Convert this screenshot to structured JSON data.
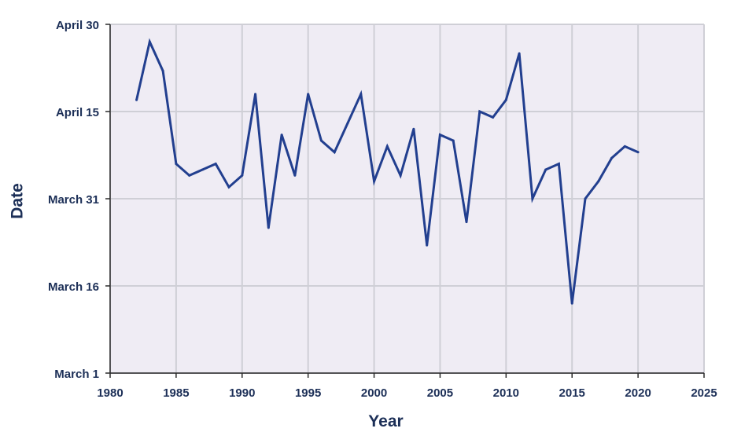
{
  "chart_data": {
    "type": "line",
    "xlabel": "Year",
    "ylabel": "Date",
    "xlim": [
      1980,
      2025
    ],
    "x_ticks": [
      "1980",
      "1985",
      "1990",
      "1995",
      "2000",
      "2005",
      "2010",
      "2015",
      "2020",
      "2025"
    ],
    "y_ticks": [
      "March 1",
      "March 16",
      "March 31",
      "April 15",
      "April 30"
    ],
    "ylim": [
      "March 1",
      "April 30"
    ],
    "grid": true,
    "colors": {
      "plot_background": "#efecf4",
      "grid": "#cfcfd6",
      "line": "#223f8f",
      "axis": "#2a2a2a",
      "text": "#1c2f57"
    },
    "series": [
      {
        "x": [
          1982,
          1983,
          1984,
          1985,
          1986,
          1987,
          1988,
          1989,
          1990,
          1991,
          1992,
          1993,
          1994,
          1995,
          1996,
          1997,
          1998,
          1999,
          2000,
          2001,
          2002,
          2003,
          2004,
          2005,
          2006,
          2007,
          2008,
          2009,
          2010,
          2011,
          2012,
          2013,
          2014,
          2015,
          2016,
          2017,
          2018,
          2019,
          2020
        ],
        "y": [
          "April 17",
          "April 27",
          "April 22",
          "April 6",
          "April 4",
          "April 5",
          "April 6",
          "April 2",
          "April 4",
          "April 18",
          "March 26",
          "April 11",
          "April 4",
          "April 18",
          "April 10",
          "April 8",
          "April 13",
          "April 18",
          "April 3",
          "April 9",
          "April 4",
          "April 12",
          "March 23",
          "April 11",
          "April 10",
          "March 27",
          "April 15",
          "April 14",
          "April 17",
          "April 25",
          "March 31",
          "April 5",
          "April 6",
          "March 13",
          "March 31",
          "April 3",
          "April 7",
          "April 9",
          "April 8"
        ]
      }
    ]
  }
}
